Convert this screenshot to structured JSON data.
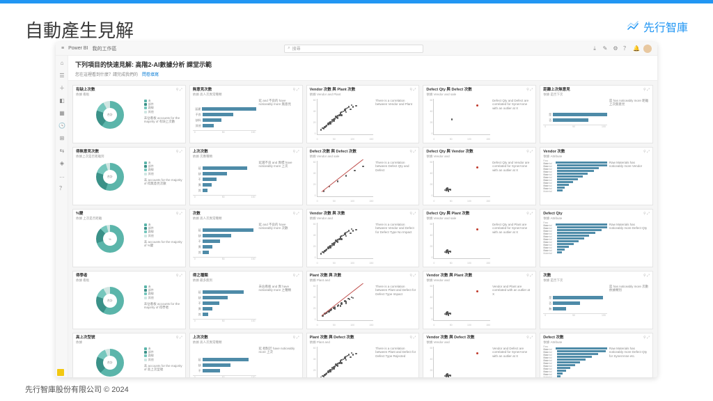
{
  "slide": {
    "title": "自動產生見解",
    "footer": "先行智庫股份有限公司 © 2024",
    "brand": "先行智庫"
  },
  "colors": {
    "accent": "#2196f3",
    "bar": "#4e8ba8",
    "teal": "#5bb5aa",
    "teal_dark": "#3a9188",
    "pale": "#cfe6e2",
    "outlier": "#c0392b",
    "scatter": "#555555",
    "bg": "#f5f5f5"
  },
  "app": {
    "product": "Power BI",
    "workspace": "我的工作區",
    "search_placeholder": "搜尋",
    "header_title": "下列項目的快速見解: 高階2-AI數據分析 課堂示範",
    "header_sub_1": "您在這裡看到什麼？請完成我們的",
    "header_sub_link": "問卷填寫",
    "sidebar_icons": [
      "⌂",
      "☰",
      "＋",
      "◧",
      "▦",
      "🕓",
      "⊞",
      "⇆",
      "◈",
      "…",
      "？"
    ],
    "top_icons": [
      "⤓",
      "✎",
      "⚙",
      "？",
      "🔔"
    ]
  },
  "donut_legend_labels": [
    "未",
    "部件",
    "路線",
    "其他"
  ],
  "cards": [
    {
      "r": 1,
      "c": 1,
      "type": "donut",
      "title": "有缺上次數",
      "sub": "依據 看板",
      "slices": [
        60,
        20,
        12,
        8
      ],
      "slice_colors": [
        "#5bb5aa",
        "#3a9188",
        "#76c7bd",
        "#cfe6e2"
      ],
      "center": "合計",
      "desc": "未佔看板 accounts for the majority of 有缺上次數"
    },
    {
      "r": 1,
      "c": 2,
      "type": "hbar",
      "title": "無意見次數",
      "sub": "依據 高人次異常種類",
      "bars": [
        {
          "l": "延遲",
          "v": 90
        },
        {
          "l": "不良",
          "v": 48
        },
        {
          "l": "缺料",
          "v": 30
        },
        {
          "l": "其他",
          "v": 18
        }
      ],
      "desc": "延 and 不良的 have noticeably more 無意見"
    },
    {
      "r": 1,
      "c": 3,
      "type": "scatter",
      "title": "Vendor 次數 與 Plant 次數",
      "sub": "依據 Vendor and Plant",
      "style": "dense_diag",
      "desc": "There is a correlation between Vendor and Plant"
    },
    {
      "r": 1,
      "c": 4,
      "type": "scatter",
      "title": "Defect Qty 與 Defect 次數",
      "sub": "依據 Vendor and sale",
      "style": "outlier_single",
      "desc": "Defect Qty and Defect are correlated for SynerAnne with an outlier at X"
    },
    {
      "r": 1,
      "c": 5,
      "type": "hbar",
      "title": "距離上次無意見",
      "sub": "依據 是否下次",
      "bars": [
        {
          "l": "是",
          "v": 85
        },
        {
          "l": "否",
          "v": 55
        }
      ],
      "desc": "是 has noticeably more 距離上次無意見"
    },
    {
      "r": 2,
      "c": 1,
      "type": "donut",
      "title": "得無意見次數",
      "sub": "依據上次是否距離到",
      "slices": [
        55,
        25,
        15,
        5
      ],
      "slice_colors": [
        "#5bb5aa",
        "#3a9188",
        "#76c7bd",
        "#cfe6e2"
      ],
      "center": "合計",
      "desc": "未 accounts for the majority of 得無意見次數"
    },
    {
      "r": 2,
      "c": 2,
      "type": "hbar",
      "title": "上次次數",
      "sub": "依據 次應種類",
      "bars": [
        {
          "l": "延",
          "v": 70
        },
        {
          "l": "缺",
          "v": 38
        },
        {
          "l": "不",
          "v": 22
        },
        {
          "l": "異",
          "v": 14
        },
        {
          "l": "其",
          "v": 8
        }
      ],
      "desc": "延遲不良 and 異標 have noticeably more 上次"
    },
    {
      "r": 2,
      "c": 3,
      "type": "scatter",
      "title": "Defect 次數 與 Defect 次數",
      "sub": "依據 Vendor and sale",
      "style": "trend",
      "desc": "There is a correlation between Defect Qty and Defect"
    },
    {
      "r": 2,
      "c": 4,
      "type": "scatter",
      "title": "Defect Qty 與 Vendor 次數",
      "sub": "依據 Vendor and",
      "style": "outlier_cluster",
      "desc": "Defect Qty and Vendor are correlated for SynerAnne with an outlier at X"
    },
    {
      "r": 2,
      "c": 5,
      "type": "thinbars",
      "title": "Vendor 次數",
      "sub": "依據 Attribute",
      "bars": [
        92,
        78,
        65,
        58,
        48,
        40,
        32,
        25,
        18,
        12,
        8
      ],
      "desc": "Raw Materials has noticeably more Vendor"
    },
    {
      "r": 3,
      "c": 1,
      "type": "donut",
      "title": "%變",
      "sub": "依據 上次是否距離",
      "slices": [
        70,
        18,
        8,
        4
      ],
      "slice_colors": [
        "#5bb5aa",
        "#3a9188",
        "#76c7bd",
        "#cfe6e2"
      ],
      "center": "%",
      "desc": "未 accounts for the majority of %變"
    },
    {
      "r": 3,
      "c": 2,
      "type": "hbar",
      "title": "次數",
      "sub": "依據 高人次異常種類",
      "bars": [
        {
          "l": "延",
          "v": 80
        },
        {
          "l": "缺",
          "v": 45
        },
        {
          "l": "不",
          "v": 28
        },
        {
          "l": "異",
          "v": 16
        },
        {
          "l": "其",
          "v": 10
        }
      ],
      "desc": "延 and 不良的 have noticeably more 次數"
    },
    {
      "r": 3,
      "c": 3,
      "type": "scatter",
      "title": "Vendor 次數 與 次數",
      "sub": "依據 Vendor and",
      "style": "dense_diag",
      "desc": "There is a correlation between Vendor and Defect for Defect Type No Impact"
    },
    {
      "r": 3,
      "c": 4,
      "type": "scatter",
      "title": "Defect Qty 與 Plant 次數",
      "sub": "依據 Vendor and sale",
      "style": "outlier_cluster",
      "desc": "Defect Qty and Plant are correlated for SynerAnne with an outlier at X"
    },
    {
      "r": 3,
      "c": 5,
      "type": "thinbars",
      "title": "Defect Qty",
      "sub": "依據 Attribute",
      "bars": [
        95,
        82,
        70,
        60,
        50,
        42,
        34,
        26,
        18,
        12,
        7
      ],
      "desc": "Raw Materials has noticeably more Defect Qty"
    },
    {
      "r": 4,
      "c": 1,
      "type": "donut",
      "title": "得學者",
      "sub": "依據 看板",
      "slices": [
        58,
        22,
        12,
        8
      ],
      "slice_colors": [
        "#5bb5aa",
        "#3a9188",
        "#76c7bd",
        "#cfe6e2"
      ],
      "center": "合計",
      "desc": "未佔看板 accounts for the majority of 得學者"
    },
    {
      "r": 4,
      "c": 2,
      "type": "hbar",
      "title": "得之種類",
      "sub": "依據 最多無到",
      "bars": [
        {
          "l": "延",
          "v": 65
        },
        {
          "l": "缺",
          "v": 40
        },
        {
          "l": "不",
          "v": 26
        },
        {
          "l": "異",
          "v": 15
        },
        {
          "l": "其",
          "v": 9
        }
      ],
      "desc": "未佔看板 and 異 have noticeably more 之種類"
    },
    {
      "r": 4,
      "c": 3,
      "type": "scatter",
      "title": "Plant 次數 與 次數",
      "sub": "依據 Plant and",
      "style": "trend_cloud",
      "desc": "There is a correlation between Plant and Defect for Defect Type Impact"
    },
    {
      "r": 4,
      "c": 4,
      "type": "scatter",
      "title": "Vendor 次數 與 Plant 次數",
      "sub": "依據 Vendor and",
      "style": "outlier_cluster",
      "desc": "Vendor and Plant are correlated with an outlier at X"
    },
    {
      "r": 4,
      "c": 5,
      "type": "hbar",
      "title": "次數",
      "sub": "依據 是否下次",
      "bars": [
        {
          "l": "是",
          "v": 78
        },
        {
          "l": "否",
          "v": 42
        },
        {
          "l": "無",
          "v": 20
        }
      ],
      "desc": "是 has noticeably more 次數 依據類別"
    },
    {
      "r": 5,
      "c": 1,
      "type": "donut",
      "title": "高上次型號",
      "sub": "依據",
      "slices": [
        62,
        20,
        12,
        6
      ],
      "slice_colors": [
        "#5bb5aa",
        "#3a9188",
        "#76c7bd",
        "#cfe6e2"
      ],
      "center": "合計",
      "desc": "未 accounts for the majority of 高上次型號"
    },
    {
      "r": 5,
      "c": 2,
      "type": "hbar",
      "title": "上次次數",
      "sub": "依據 高人次異常種類",
      "bars": [
        {
          "l": "延",
          "v": 72
        },
        {
          "l": "缺",
          "v": 44
        },
        {
          "l": "不",
          "v": 28
        }
      ],
      "desc": "延 相對於 have noticeably more 上次"
    },
    {
      "r": 5,
      "c": 3,
      "type": "scatter",
      "title": "Plant 次數 與 Defect 次數",
      "sub": "依據 Plant and",
      "style": "dense_diag",
      "desc": "There is a correlation between Plant and Defect for Defect Type Rejected"
    },
    {
      "r": 5,
      "c": 4,
      "type": "scatter",
      "title": "Vendor 次數 與 Defect 次數",
      "sub": "依據 Vendor and",
      "style": "outlier_cluster",
      "desc": "Vendor and Defect are correlated for SynerAnne with an outlier at X"
    },
    {
      "r": 5,
      "c": 5,
      "type": "thinbars",
      "title": "Defect 次數",
      "sub": "依據 Attribute",
      "bars": [
        90,
        76,
        64,
        54,
        44,
        36,
        28,
        20,
        14,
        9,
        5
      ],
      "desc": "Raw Materials has noticeably more Defect Qty for SynerAnne etc."
    }
  ],
  "scatter_points": {
    "dense_diag": [
      [
        5,
        10
      ],
      [
        8,
        15
      ],
      [
        12,
        18
      ],
      [
        15,
        22
      ],
      [
        18,
        28
      ],
      [
        20,
        30
      ],
      [
        22,
        32
      ],
      [
        25,
        38
      ],
      [
        28,
        40
      ],
      [
        30,
        42
      ],
      [
        32,
        48
      ],
      [
        35,
        50
      ],
      [
        38,
        52
      ],
      [
        40,
        58
      ],
      [
        42,
        60
      ],
      [
        45,
        62
      ],
      [
        48,
        68
      ],
      [
        50,
        70
      ],
      [
        55,
        75
      ],
      [
        60,
        80
      ],
      [
        18,
        25
      ],
      [
        25,
        33
      ],
      [
        33,
        45
      ],
      [
        40,
        55
      ],
      [
        48,
        65
      ],
      [
        52,
        72
      ],
      [
        10,
        14
      ],
      [
        14,
        20
      ],
      [
        22,
        28
      ],
      [
        28,
        36
      ],
      [
        35,
        44
      ],
      [
        42,
        52
      ],
      [
        50,
        60
      ],
      [
        58,
        68
      ],
      [
        62,
        75
      ],
      [
        68,
        78
      ]
    ],
    "trend": [
      [
        10,
        12
      ],
      [
        20,
        25
      ],
      [
        35,
        40
      ],
      [
        50,
        55
      ],
      [
        65,
        70
      ],
      [
        80,
        82
      ]
    ],
    "trend_cloud": [
      [
        8,
        10
      ],
      [
        12,
        16
      ],
      [
        18,
        22
      ],
      [
        24,
        28
      ],
      [
        30,
        34
      ],
      [
        36,
        40
      ],
      [
        42,
        46
      ],
      [
        48,
        52
      ],
      [
        54,
        58
      ],
      [
        60,
        62
      ],
      [
        15,
        18
      ],
      [
        22,
        26
      ],
      [
        28,
        32
      ],
      [
        35,
        38
      ],
      [
        42,
        44
      ],
      [
        50,
        50
      ],
      [
        56,
        56
      ],
      [
        62,
        60
      ],
      [
        20,
        22
      ],
      [
        30,
        30
      ],
      [
        40,
        38
      ],
      [
        50,
        46
      ]
    ],
    "outlier_single": [
      [
        30,
        40
      ]
    ],
    "outlier_cluster": [
      [
        20,
        14
      ],
      [
        22,
        16
      ],
      [
        24,
        15
      ],
      [
        20,
        18
      ],
      [
        18,
        15
      ],
      [
        24,
        12
      ],
      [
        26,
        17
      ],
      [
        22,
        20
      ],
      [
        28,
        16
      ]
    ]
  },
  "outlier_point": [
    75,
    78
  ],
  "axis_ticks_x": [
    "0",
    "50",
    "100",
    "150"
  ],
  "axis_ticks_y": [
    "60",
    "40",
    "20",
    "0"
  ]
}
